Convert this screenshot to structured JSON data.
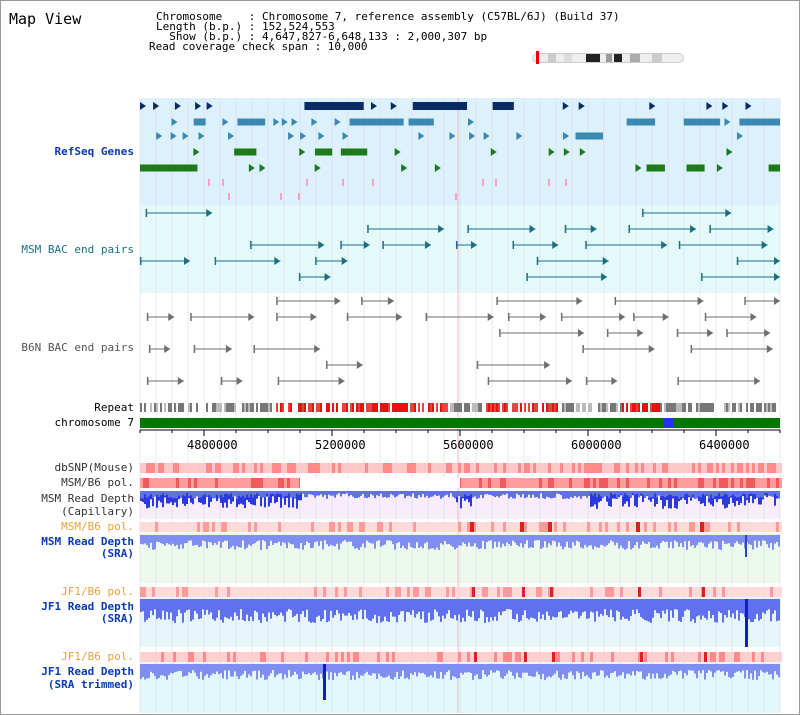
{
  "header": {
    "title": "Map View",
    "line1": "Chromosome    : Chromosome 7, reference assembly (C57BL/6J) (Build 37)",
    "line2": "Length (b.p.) : 152,524,553",
    "line3": "  Show (b.p.) : 4,647,827-6,648,133 : 2,000,307 bp",
    "line4": "Read coverage check span : 10,000"
  },
  "tracks": {
    "refseq": "RefSeq Genes",
    "msm_bac": "MSM BAC end pairs",
    "b6n_bac": "B6N BAC end pairs",
    "repeat": "Repeat",
    "chromosome": "chromosome 7",
    "dbsnp": "dbSNP(Mouse)",
    "msm_b6_pol_a": "MSM/B6 pol.",
    "msm_depth_cap_1": "MSM Read Depth",
    "msm_depth_cap_2": "(Capillary)",
    "msm_b6_pol_b": "MSM/B6 pol.",
    "msm_depth_sra_1": "MSM Read Depth",
    "msm_depth_sra_2": "(SRA)",
    "jf1_b6_pol_a": "JF1/B6 pol.",
    "jf1_depth_sra_1": "JF1 Read Depth",
    "jf1_depth_sra_2": "(SRA)",
    "jf1_b6_pol_b": "JF1/B6 pol.",
    "jf1_depth_trim_1": "JF1 Read Depth",
    "jf1_depth_trim_2": "(SRA trimmed)"
  },
  "axis": {
    "ticks": [
      "4800000",
      "5200000",
      "5600000",
      "6000000",
      "6400000"
    ],
    "range": [
      4647827,
      6648133
    ]
  },
  "colors": {
    "navy": "#0a2a66",
    "blue_gene": "#3b88b0",
    "green_gene": "#1c7a1c",
    "pink": "#ff9fc2",
    "teal": "#1a6f85",
    "gray": "#6e6e6e",
    "chrom": "#007700",
    "label_blue": "#0a3ab5",
    "label_gray": "#555555",
    "label_orange": "#e8a13a"
  }
}
